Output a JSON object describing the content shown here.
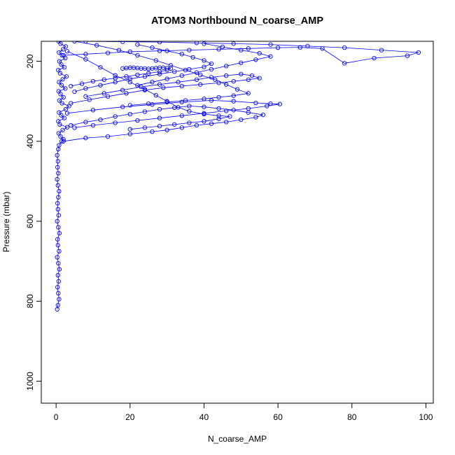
{
  "chart_data": {
    "type": "line",
    "title": "ATOM3 Northbound N_coarse_AMP",
    "xlabel": "N_coarse_AMP",
    "ylabel": "Pressure (mbar)",
    "xlim": [
      -4,
      102
    ],
    "ylim": [
      1055,
      150
    ],
    "y_axis_inverted": true,
    "x_ticks": [
      "0",
      "20",
      "40",
      "60",
      "80",
      "100"
    ],
    "y_ticks": [
      "200",
      "400",
      "600",
      "800",
      "1000"
    ],
    "marker": "open-circle",
    "grid": false,
    "legend": "none",
    "series": [
      {
        "points": [
          [
            0.3,
            820
          ],
          [
            0.5,
            810
          ],
          [
            0.8,
            795
          ],
          [
            0.6,
            780
          ],
          [
            0.4,
            765
          ],
          [
            0.7,
            750
          ],
          [
            0.5,
            735
          ],
          [
            0.9,
            720
          ],
          [
            0.6,
            705
          ],
          [
            0.3,
            690
          ],
          [
            0.8,
            675
          ],
          [
            0.5,
            660
          ],
          [
            0.4,
            645
          ],
          [
            0.9,
            630
          ],
          [
            0.6,
            615
          ],
          [
            0.3,
            600
          ],
          [
            0.7,
            585
          ],
          [
            0.5,
            570
          ],
          [
            0.4,
            555
          ],
          [
            0.6,
            540
          ],
          [
            0.8,
            525
          ],
          [
            0.5,
            510
          ],
          [
            0.3,
            495
          ],
          [
            0.6,
            480
          ],
          [
            0.4,
            465
          ],
          [
            0.5,
            450
          ],
          [
            0.3,
            435
          ],
          [
            0.6,
            420
          ],
          [
            0.8,
            410
          ],
          [
            1.5,
            400
          ],
          [
            2.0,
            395
          ],
          [
            1.2,
            388
          ],
          [
            0.7,
            380
          ],
          [
            1.8,
            372
          ],
          [
            3.0,
            365
          ],
          [
            1.0,
            358
          ],
          [
            0.6,
            350
          ],
          [
            2.2,
            342
          ],
          [
            1.4,
            335
          ],
          [
            0.8,
            328
          ],
          [
            2.6,
            320
          ],
          [
            3.5,
            312
          ],
          [
            1.6,
            305
          ],
          [
            0.9,
            298
          ],
          [
            2.0,
            290
          ],
          [
            1.2,
            282
          ],
          [
            0.7,
            275
          ],
          [
            2.5,
            268
          ],
          [
            1.5,
            260
          ],
          [
            0.8,
            252
          ],
          [
            1.8,
            245
          ],
          [
            2.8,
            238
          ],
          [
            1.1,
            230
          ],
          [
            0.6,
            222
          ],
          [
            2.2,
            215
          ],
          [
            1.4,
            208
          ],
          [
            0.9,
            200
          ],
          [
            2.5,
            192
          ],
          [
            1.6,
            185
          ],
          [
            0.8,
            178
          ],
          [
            1.9,
            170
          ],
          [
            2.6,
            163
          ],
          [
            1.2,
            156
          ],
          [
            0.7,
            150
          ]
        ]
      },
      {
        "points": [
          [
            2,
            400
          ],
          [
            8,
            392
          ],
          [
            14,
            388
          ],
          [
            20,
            382
          ],
          [
            26,
            376
          ],
          [
            30,
            372
          ],
          [
            34,
            366
          ],
          [
            38,
            360
          ],
          [
            42,
            356
          ],
          [
            46,
            352
          ],
          [
            50,
            346
          ],
          [
            54,
            340
          ],
          [
            56,
            334
          ],
          [
            52,
            328
          ],
          [
            48,
            322
          ],
          [
            44,
            318
          ],
          [
            40,
            314
          ],
          [
            36,
            312
          ],
          [
            32,
            316
          ],
          [
            28,
            320
          ],
          [
            24,
            326
          ],
          [
            20,
            332
          ],
          [
            16,
            338
          ],
          [
            12,
            346
          ],
          [
            8,
            352
          ],
          [
            4,
            360
          ]
        ]
      },
      {
        "points": [
          [
            3,
            330
          ],
          [
            10,
            322
          ],
          [
            18,
            314
          ],
          [
            26,
            308
          ],
          [
            34,
            302
          ],
          [
            42,
            298
          ],
          [
            48,
            300
          ],
          [
            54,
            304
          ],
          [
            58,
            306
          ],
          [
            60.5,
            307
          ],
          [
            57,
            312
          ],
          [
            52,
            318
          ],
          [
            46,
            324
          ],
          [
            40,
            330
          ],
          [
            34,
            336
          ],
          [
            28,
            342
          ],
          [
            22,
            348
          ],
          [
            16,
            354
          ],
          [
            10,
            360
          ],
          [
            5,
            366
          ]
        ]
      },
      {
        "points": [
          [
            4,
            305
          ],
          [
            9,
            296
          ],
          [
            14,
            288
          ],
          [
            19,
            280
          ],
          [
            24,
            272
          ],
          [
            29,
            266
          ],
          [
            34,
            262
          ],
          [
            39,
            258
          ],
          [
            44,
            254
          ],
          [
            48,
            250
          ],
          [
            52,
            246
          ],
          [
            55,
            242
          ],
          [
            53,
            236
          ],
          [
            50,
            232
          ],
          [
            46,
            236
          ],
          [
            42,
            240
          ],
          [
            38,
            246
          ],
          [
            33,
            252
          ],
          [
            28,
            258
          ],
          [
            23,
            264
          ],
          [
            18,
            272
          ],
          [
            13,
            280
          ],
          [
            8,
            288
          ]
        ]
      },
      {
        "points": [
          [
            18,
            218
          ],
          [
            19,
            217
          ],
          [
            20,
            216
          ],
          [
            21,
            216
          ],
          [
            22,
            217
          ],
          [
            23,
            218
          ],
          [
            24,
            218
          ],
          [
            25,
            219
          ],
          [
            26,
            218
          ],
          [
            27,
            217
          ],
          [
            28,
            216
          ],
          [
            29,
            216
          ],
          [
            30,
            217
          ],
          [
            31,
            218
          ],
          [
            30,
            222
          ],
          [
            28,
            226
          ],
          [
            25,
            230
          ],
          [
            22,
            234
          ],
          [
            19,
            238
          ],
          [
            16,
            242
          ],
          [
            13,
            246
          ],
          [
            10,
            250
          ],
          [
            7,
            256
          ],
          [
            4,
            262
          ]
        ]
      },
      {
        "points": [
          [
            2,
            185
          ],
          [
            8,
            182
          ],
          [
            14,
            179
          ],
          [
            20,
            176
          ],
          [
            28,
            174
          ],
          [
            36,
            172
          ],
          [
            44,
            170
          ],
          [
            52,
            168
          ],
          [
            60,
            166
          ],
          [
            66,
            165
          ],
          [
            72,
            168
          ],
          [
            78,
            205
          ],
          [
            86,
            192
          ],
          [
            95,
            186
          ],
          [
            98,
            178
          ],
          [
            88,
            172
          ],
          [
            78,
            166
          ],
          [
            68,
            162
          ],
          [
            58,
            158
          ],
          [
            48,
            156
          ],
          [
            38,
            154
          ],
          [
            28,
            152
          ],
          [
            18,
            151
          ],
          [
            8,
            150
          ]
        ]
      },
      {
        "points": [
          [
            3,
            175
          ],
          [
            8,
            195
          ],
          [
            12,
            215
          ],
          [
            16,
            235
          ],
          [
            20,
            252
          ],
          [
            24,
            270
          ],
          [
            27,
            285
          ],
          [
            30,
            300
          ],
          [
            33,
            315
          ],
          [
            36,
            325
          ],
          [
            40,
            332
          ],
          [
            44,
            336
          ],
          [
            47,
            338
          ],
          [
            44,
            344
          ],
          [
            40,
            350
          ],
          [
            36,
            354
          ],
          [
            32,
            358
          ],
          [
            28,
            362
          ],
          [
            24,
            366
          ],
          [
            20,
            370
          ]
        ]
      },
      {
        "points": [
          [
            5,
            150
          ],
          [
            11,
            160
          ],
          [
            17,
            172
          ],
          [
            22,
            185
          ],
          [
            27,
            198
          ],
          [
            31,
            210
          ],
          [
            35,
            222
          ],
          [
            39,
            234
          ],
          [
            43,
            246
          ],
          [
            46,
            258
          ],
          [
            49,
            270
          ],
          [
            52,
            280
          ],
          [
            48,
            286
          ],
          [
            44,
            290
          ],
          [
            40,
            294
          ],
          [
            35,
            298
          ],
          [
            30,
            302
          ],
          [
            25,
            306
          ],
          [
            20,
            310
          ]
        ]
      },
      {
        "points": [
          [
            22,
            158
          ],
          [
            26,
            166
          ],
          [
            30,
            174
          ],
          [
            34,
            182
          ],
          [
            37,
            190
          ],
          [
            40,
            198
          ],
          [
            42,
            206
          ],
          [
            40,
            214
          ],
          [
            36,
            220
          ],
          [
            32,
            226
          ],
          [
            28,
            232
          ],
          [
            24,
            238
          ],
          [
            20,
            244
          ],
          [
            16,
            252
          ],
          [
            12,
            260
          ],
          [
            8,
            268
          ],
          [
            5,
            276
          ]
        ]
      },
      {
        "points": [
          [
            40,
            156
          ],
          [
            45,
            164
          ],
          [
            50,
            172
          ],
          [
            55,
            180
          ],
          [
            58,
            188
          ],
          [
            54,
            196
          ],
          [
            50,
            204
          ],
          [
            46,
            212
          ],
          [
            42,
            220
          ],
          [
            38,
            228
          ],
          [
            34,
            236
          ],
          [
            30,
            244
          ],
          [
            26,
            252
          ],
          [
            22,
            260
          ]
        ]
      }
    ]
  }
}
